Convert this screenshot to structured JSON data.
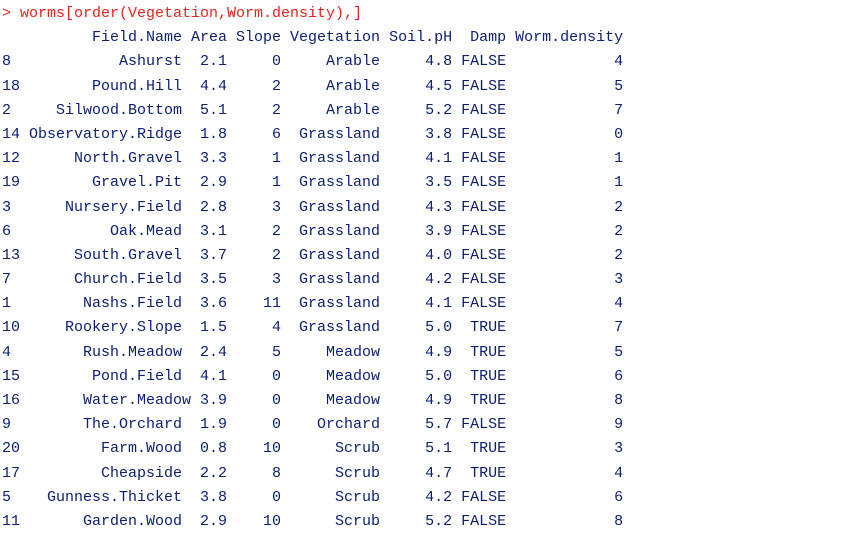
{
  "console": {
    "command": "> worms[order(Vegetation,Worm.density),]",
    "header": "          Field.Name Area Slope Vegetation Soil.pH  Damp Worm.density",
    "rows": [
      "8            Ashurst  2.1     0     Arable     4.8 FALSE            4",
      "18        Pound.Hill  4.4     2     Arable     4.5 FALSE            5",
      "2     Silwood.Bottom  5.1     2     Arable     5.2 FALSE            7",
      "14 Observatory.Ridge  1.8     6  Grassland     3.8 FALSE            0",
      "12      North.Gravel  3.3     1  Grassland     4.1 FALSE            1",
      "19        Gravel.Pit  2.9     1  Grassland     3.5 FALSE            1",
      "3      Nursery.Field  2.8     3  Grassland     4.3 FALSE            2",
      "6           Oak.Mead  3.1     2  Grassland     3.9 FALSE            2",
      "13      South.Gravel  3.7     2  Grassland     4.0 FALSE            2",
      "7       Church.Field  3.5     3  Grassland     4.2 FALSE            3",
      "1        Nashs.Field  3.6    11  Grassland     4.1 FALSE            4",
      "10     Rookery.Slope  1.5     4  Grassland     5.0  TRUE            7",
      "4        Rush.Meadow  2.4     5     Meadow     4.9  TRUE            5",
      "15        Pond.Field  4.1     0     Meadow     5.0  TRUE            6",
      "16       Water.Meadow 3.9     0     Meadow     4.9  TRUE            8",
      "9        The.Orchard  1.9     0    Orchard     5.7 FALSE            9",
      "20         Farm.Wood  0.8    10      Scrub     5.1  TRUE            3",
      "17         Cheapside  2.2     8      Scrub     4.7  TRUE            4",
      "5    Gunness.Thicket  3.8     0      Scrub     4.2 FALSE            6",
      "11       Garden.Wood  2.9    10      Scrub     5.2 FALSE            8"
    ]
  },
  "colors": {
    "command": "#e8231c",
    "output": "#0b1e73",
    "background": "#ffffff"
  }
}
